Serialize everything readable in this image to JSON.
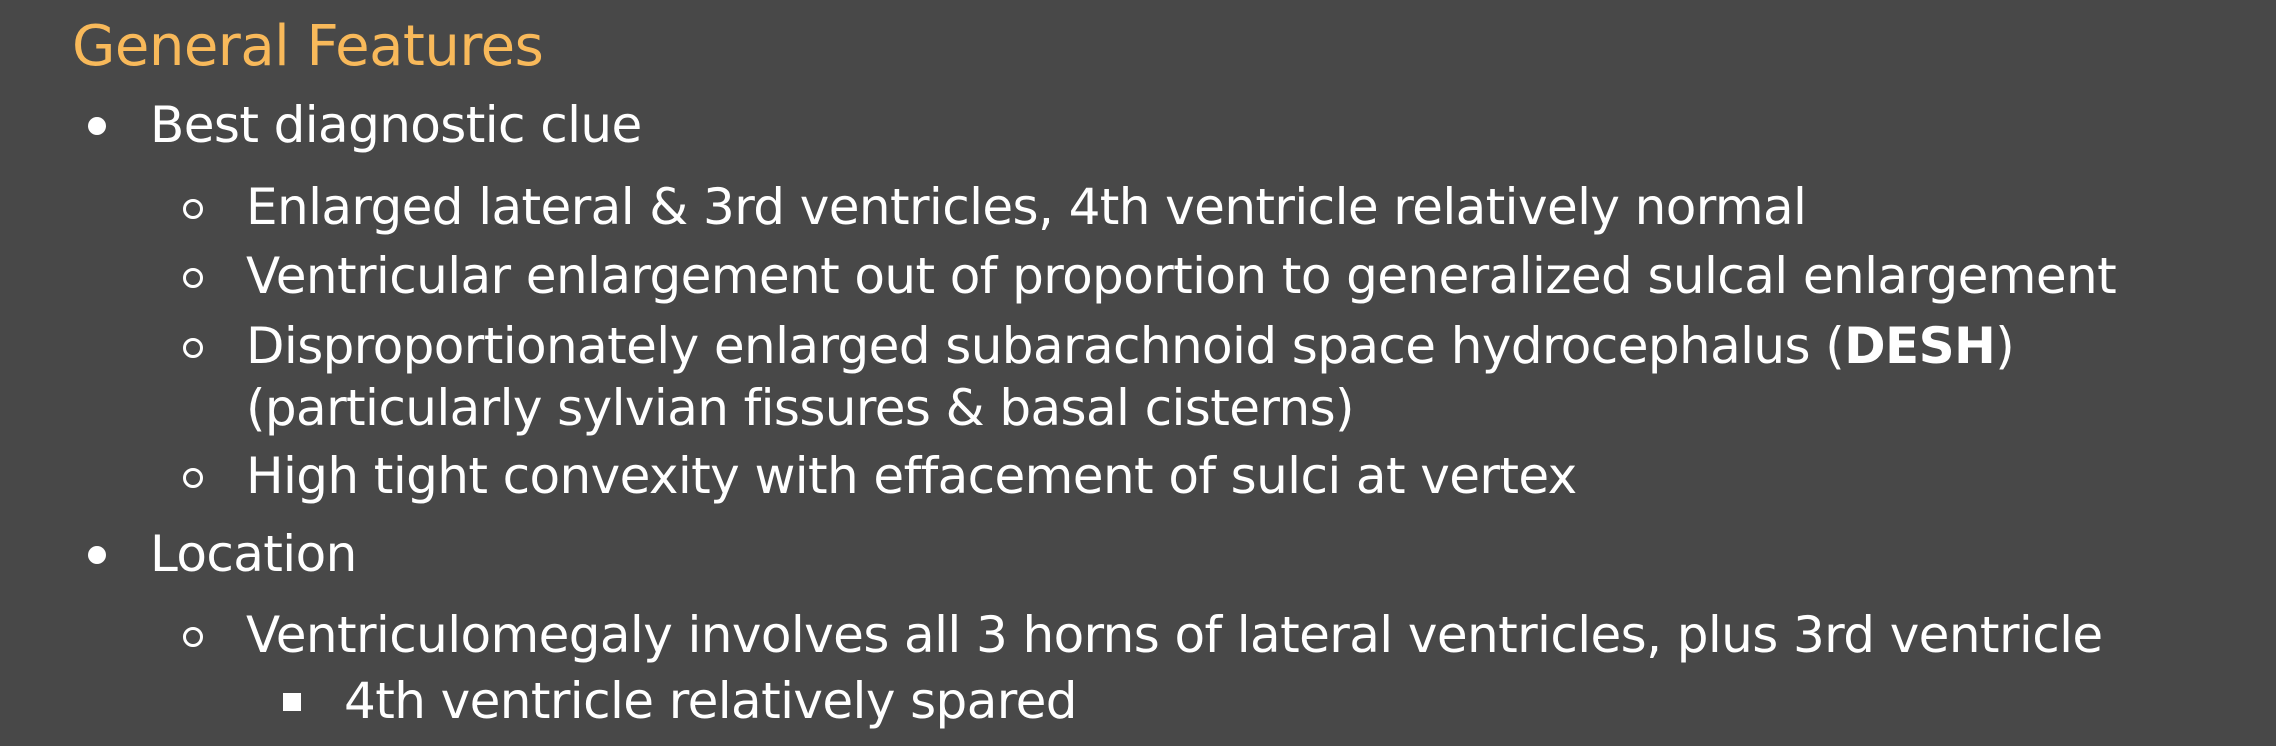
{
  "heading": "General Features",
  "sections": [
    {
      "label": "Best diagnostic clue",
      "items": [
        {
          "text": "Enlarged lateral & 3rd ventricles, 4th ventricle relatively normal"
        },
        {
          "text": "Ventricular enlargement out of proportion to generalized sulcal enlargement"
        },
        {
          "text_before": "Disproportionately enlarged subarachnoid space hydrocephalus (",
          "bold": "DESH",
          "text_after": ")",
          "line2": "(particularly sylvian fissures & basal cisterns)"
        },
        {
          "text": "High tight convexity with effacement of sulci at vertex"
        }
      ]
    },
    {
      "label": "Location",
      "items": [
        {
          "text": "Ventriculomegaly involves all 3 horns of lateral ventricles, plus 3rd ventricle",
          "subitems": [
            "4th ventricle relatively spared"
          ]
        }
      ]
    }
  ]
}
